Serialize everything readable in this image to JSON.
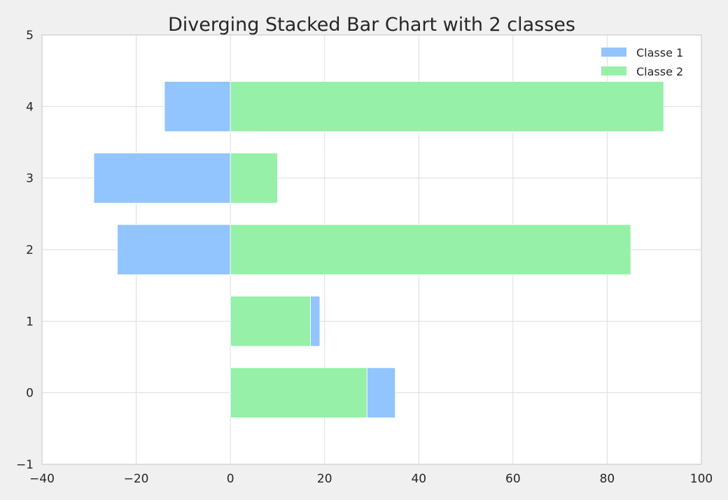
{
  "chart_data": {
    "type": "bar",
    "orientation": "horizontal",
    "stacking": "diverging",
    "title": "Diverging Stacked Bar Chart with 2 classes",
    "xlabel": "",
    "ylabel": "",
    "xlim": [
      -40,
      100
    ],
    "ylim": [
      -1,
      5
    ],
    "x_ticks": [
      -40,
      -20,
      0,
      20,
      40,
      60,
      80,
      100
    ],
    "y_ticks": [
      -1,
      0,
      1,
      2,
      3,
      4,
      5
    ],
    "x_tick_labels": [
      "−40",
      "−20",
      "0",
      "20",
      "40",
      "60",
      "80",
      "100"
    ],
    "y_tick_labels": [
      "−1",
      "0",
      "1",
      "2",
      "3",
      "4",
      "5"
    ],
    "grid": true,
    "legend_position": "top-right",
    "categories": [
      0,
      1,
      2,
      3,
      4
    ],
    "series": [
      {
        "name": "Classe 1",
        "color": "#92c5fd",
        "values": [
          6,
          2,
          -24,
          -29,
          -14
        ],
        "segment_start": [
          29,
          17,
          0,
          0,
          0
        ]
      },
      {
        "name": "Classe 2",
        "color": "#96f0a8",
        "values": [
          29,
          17,
          85,
          10,
          92
        ],
        "segment_start": [
          0,
          0,
          0,
          0,
          0
        ]
      }
    ]
  }
}
